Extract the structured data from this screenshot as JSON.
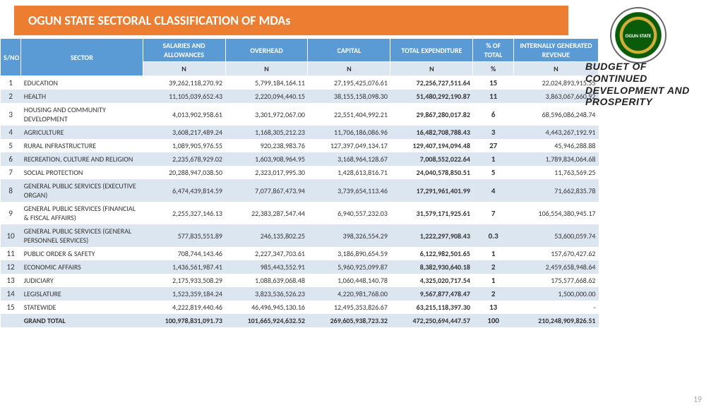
{
  "title": "OGUN STATE SECTORAL CLASSIFICATION OF MDAs",
  "tagline": "BUDGET OF CONTINUED DEVELOPMENT AND PROSPERITY",
  "logo_text": "OGUN STATE",
  "page_number": "19",
  "headers": {
    "sno": "S/NO",
    "sector": "SECTOR",
    "salaries": "SALARIES AND ALLOWANCES",
    "overhead": "OVERHEAD",
    "capital": "CAPITAL",
    "total_exp": "TOTAL EXPENDITURE",
    "pct": "% OF  TOTAL",
    "igr": "INTERNALLY GENERATED REVENUE",
    "unit_n": "N",
    "unit_pct": "%"
  },
  "rows": [
    {
      "sno": "1",
      "sector": "EDUCATION",
      "sal": "39,262,118,270.92",
      "ovh": "5,799,184,164.11",
      "cap": "27,195,425,076.61",
      "tot": "72,256,727,511.64",
      "pct": "15",
      "igr": "22,024,893,915.55"
    },
    {
      "sno": "2",
      "sector": "HEALTH",
      "sal": "11,105,039,652.43",
      "ovh": "2,220,094,440.15",
      "cap": "38,155,158,098.30",
      "tot": "51,480,292,190.87",
      "pct": "11",
      "igr": "3,863,067,660.92"
    },
    {
      "sno": "3",
      "sector": "HOUSING AND COMMUNITY DEVELOPMENT",
      "sal": "4,013,902,958.61",
      "ovh": "3,301,972,067.00",
      "cap": "22,551,404,992.21",
      "tot": "29,867,280,017.82",
      "pct": "6",
      "igr": "68,596,086,248.74"
    },
    {
      "sno": "4",
      "sector": "AGRICULTURE",
      "sal": "3,608,217,489.24",
      "ovh": "1,168,305,212.23",
      "cap": "11,706,186,086.96",
      "tot": "16,482,708,788.43",
      "pct": "3",
      "igr": "4,443,267,192.91"
    },
    {
      "sno": "5",
      "sector": "RURAL INFRASTRUCTURE",
      "sal": "1,089,905,976.55",
      "ovh": "920,238,983.76",
      "cap": "127,397,049,134.17",
      "tot": "129,407,194,094.48",
      "pct": "27",
      "igr": "45,946,288.88"
    },
    {
      "sno": "6",
      "sector": "RECREATION, CULTURE AND RELIGION",
      "sal": "2,235,678,929.02",
      "ovh": "1,603,908,964.95",
      "cap": "3,168,964,128.67",
      "tot": "7,008,552,022.64",
      "pct": "1",
      "igr": "1,789,834,064.68"
    },
    {
      "sno": "7",
      "sector": "SOCIAL PROTECTION",
      "sal": "20,288,947,038.50",
      "ovh": "2,323,017,995.30",
      "cap": "1,428,613,816.71",
      "tot": "24,040,578,850.51",
      "pct": "5",
      "igr": "11,763,569.25"
    },
    {
      "sno": "8",
      "sector": "GENERAL PUBLIC SERVICES (EXECUTIVE ORGAN)",
      "sal": "6,474,439,814.59",
      "ovh": "7,077,867,473.94",
      "cap": "3,739,654,113.46",
      "tot": "17,291,961,401.99",
      "pct": "4",
      "igr": "71,662,835.78"
    },
    {
      "sno": "9",
      "sector": "GENERAL PUBLIC SERVICES (FINANCIAL & FISCAL AFFAIRS)",
      "sal": "2,255,327,146.13",
      "ovh": "22,383,287,547.44",
      "cap": "6,940,557,232.03",
      "tot": "31,579,171,925.61",
      "pct": "7",
      "igr": "106,554,380,945.17"
    },
    {
      "sno": "10",
      "sector": "GENERAL PUBLIC SERVICES (GENERAL PERSONNEL SERVICES)",
      "sal": "577,835,551.89",
      "ovh": "246,135,802.25",
      "cap": "398,326,554.29",
      "tot": "1,222,297,908.43",
      "pct": "0.3",
      "igr": "53,600,059.74"
    },
    {
      "sno": "11",
      "sector": "PUBLIC ORDER & SAFETY",
      "sal": "708,744,143.46",
      "ovh": "2,227,347,703.61",
      "cap": "3,186,890,654.59",
      "tot": "6,122,982,501.65",
      "pct": "1",
      "igr": "157,670,427.62"
    },
    {
      "sno": "12",
      "sector": "ECONOMIC AFFAIRS",
      "sal": "1,436,561,987.41",
      "ovh": "985,443,552.91",
      "cap": "5,960,925,099.87",
      "tot": "8,382,930,640.18",
      "pct": "2",
      "igr": "2,459,658,948.64"
    },
    {
      "sno": "13",
      "sector": "JUDICIARY",
      "sal": "2,175,933,508.29",
      "ovh": "1,088,639,068.48",
      "cap": "1,060,448,140.78",
      "tot": "4,325,020,717.54",
      "pct": "1",
      "igr": "175,577,668.62"
    },
    {
      "sno": "14",
      "sector": "LEGISLATURE",
      "sal": "1,523,359,184.24",
      "ovh": "3,823,536,526.23",
      "cap": "4,220,981,768.00",
      "tot": "9,567,877,478.47",
      "pct": "2",
      "igr": "1,500,000.00"
    },
    {
      "sno": "15",
      "sector": "STATEWIDE",
      "sal": "4,222,819,440.46",
      "ovh": "46,496,945,130.16",
      "cap": "12,495,353,826.67",
      "tot": "63,215,118,397.30",
      "pct": "13",
      "igr": "-"
    }
  ],
  "grand_total": {
    "label": "GRAND TOTAL",
    "sal": "100,978,831,091.73",
    "ovh": "101,665,924,632.52",
    "cap": "269,605,938,723.32",
    "tot": "472,250,694,447.57",
    "pct": "100",
    "igr": "210,248,909,826.51"
  },
  "styling": {
    "title_bg": "#ed7d31",
    "header_bg": "#5b9bd5",
    "row_alt_bg": "#dce6f1",
    "title_font": 18,
    "body_font": 10,
    "tagline_font": 14
  }
}
